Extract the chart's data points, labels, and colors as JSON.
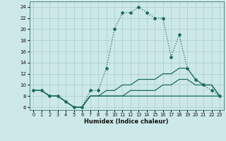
{
  "xlabel": "Humidex (Indice chaleur)",
  "bg_color": "#cde8e8",
  "line_color": "#1a6b5a",
  "grid_color": "#aacccc",
  "x_ticks": [
    0,
    1,
    2,
    3,
    4,
    5,
    6,
    7,
    8,
    9,
    10,
    11,
    12,
    13,
    14,
    15,
    16,
    17,
    18,
    19,
    20,
    21,
    22,
    23
  ],
  "y_ticks": [
    6,
    8,
    10,
    12,
    14,
    16,
    18,
    20,
    22,
    24
  ],
  "xlim": [
    -0.5,
    23.5
  ],
  "ylim": [
    5.5,
    25.0
  ],
  "lines": [
    {
      "x": [
        0,
        1,
        2,
        3,
        4,
        5,
        6,
        7,
        8,
        9,
        10,
        11,
        12,
        13,
        14,
        15,
        16,
        17,
        18,
        19,
        20,
        21,
        22,
        23
      ],
      "y": [
        9,
        9,
        8,
        8,
        7,
        6,
        6,
        9,
        9,
        13,
        20,
        23,
        23,
        24,
        23,
        22,
        22,
        15,
        19,
        13,
        11,
        10,
        9,
        8
      ],
      "marker": "D",
      "markersize": 2.0,
      "linewidth": 0.9,
      "linestyle": ":"
    },
    {
      "x": [
        0,
        1,
        2,
        3,
        4,
        5,
        6,
        7,
        8,
        9,
        10,
        11,
        12,
        13,
        14,
        15,
        16,
        17,
        18,
        19,
        20,
        21,
        22,
        23
      ],
      "y": [
        9,
        9,
        8,
        8,
        7,
        6,
        6,
        8,
        8,
        9,
        9,
        10,
        10,
        11,
        11,
        11,
        12,
        12,
        13,
        13,
        11,
        10,
        10,
        8
      ],
      "marker": null,
      "markersize": 0,
      "linewidth": 0.9,
      "linestyle": "-"
    },
    {
      "x": [
        0,
        1,
        2,
        3,
        4,
        5,
        6,
        7,
        8,
        9,
        10,
        11,
        12,
        13,
        14,
        15,
        16,
        17,
        18,
        19,
        20,
        21,
        22,
        23
      ],
      "y": [
        9,
        9,
        8,
        8,
        7,
        6,
        6,
        8,
        8,
        8,
        8,
        8,
        9,
        9,
        9,
        9,
        10,
        10,
        11,
        11,
        10,
        10,
        10,
        8
      ],
      "marker": null,
      "markersize": 0,
      "linewidth": 0.9,
      "linestyle": "-"
    },
    {
      "x": [
        0,
        1,
        2,
        3,
        4,
        5,
        6,
        7,
        8,
        9,
        10,
        11,
        12,
        13,
        14,
        15,
        16,
        17,
        18,
        19,
        20,
        21,
        22,
        23
      ],
      "y": [
        9,
        9,
        8,
        8,
        7,
        6,
        6,
        8,
        8,
        8,
        8,
        8,
        8,
        8,
        8,
        8,
        8,
        8,
        8,
        8,
        8,
        8,
        8,
        8
      ],
      "marker": null,
      "markersize": 0,
      "linewidth": 0.9,
      "linestyle": "-"
    }
  ]
}
